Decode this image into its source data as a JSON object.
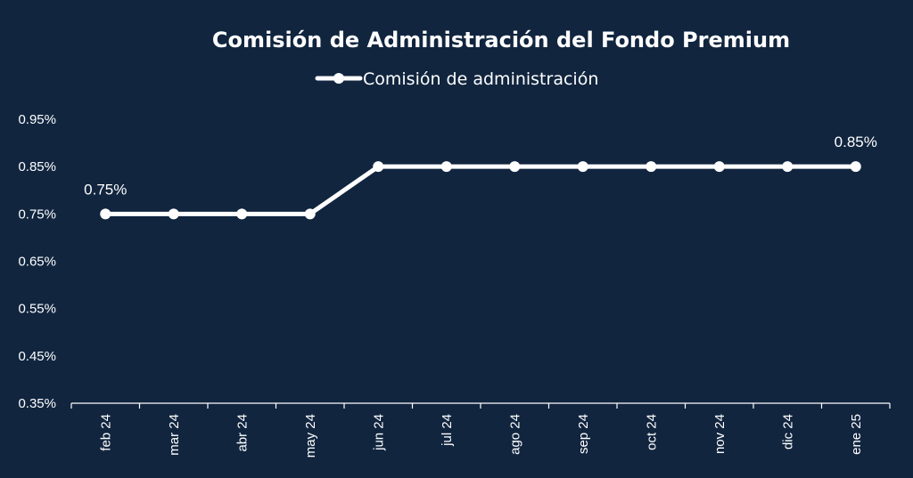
{
  "chart_data": {
    "type": "line",
    "title": "Comisión de Administración del Fondo Premium",
    "categories": [
      "feb 24",
      "mar 24",
      "abr 24",
      "may 24",
      "jun 24",
      "jul 24",
      "ago 24",
      "sep 24",
      "oct 24",
      "nov 24",
      "dic 24",
      "ene 25"
    ],
    "series": [
      {
        "name": "Comisión de administración",
        "values": [
          0.75,
          0.75,
          0.75,
          0.75,
          0.85,
          0.85,
          0.85,
          0.85,
          0.85,
          0.85,
          0.85,
          0.85
        ]
      }
    ],
    "y_ticks": [
      "0.35%",
      "0.45%",
      "0.55%",
      "0.65%",
      "0.75%",
      "0.85%",
      "0.95%"
    ],
    "ylim": [
      0.35,
      0.95
    ],
    "data_labels": [
      {
        "index": 0,
        "text": "0.75%"
      },
      {
        "index": 11,
        "text": "0.85%"
      }
    ],
    "legend_position": "top-center",
    "grid": false,
    "colors": {
      "background": "#11253f",
      "line": "#ffffff",
      "text": "#ffffff"
    }
  }
}
